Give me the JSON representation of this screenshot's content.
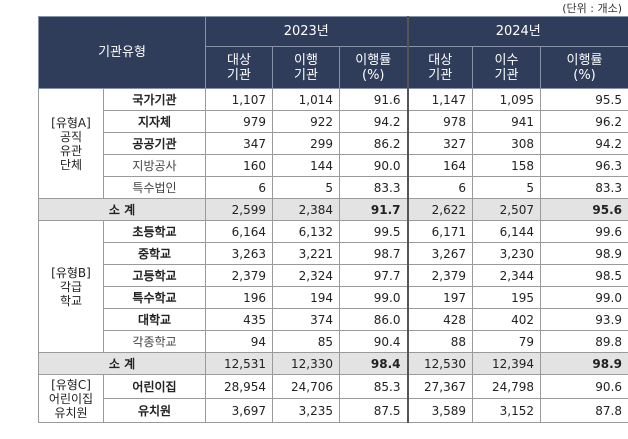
{
  "unit": "(단위 : 개소)",
  "header": {
    "type_label": "기관유형",
    "years": [
      "2023년",
      "2024년"
    ],
    "columns": [
      "대상\n기관",
      "이행\n기관",
      "이행률\n(%)",
      "대상\n기관",
      "이수\n기관",
      "이행률\n(%)"
    ]
  },
  "groups": [
    {
      "label": "[유형A]\n공직\n유관\n단체",
      "rows": [
        {
          "name": "국가기관",
          "bold": true,
          "values": [
            "1,107",
            "1,014",
            "91.6",
            "1,147",
            "1,095",
            "95.5"
          ]
        },
        {
          "name": "지자체",
          "bold": true,
          "values": [
            "979",
            "922",
            "94.2",
            "978",
            "941",
            "96.2"
          ]
        },
        {
          "name": "공공기관",
          "bold": true,
          "values": [
            "347",
            "299",
            "86.2",
            "327",
            "308",
            "94.2"
          ]
        },
        {
          "name": "지방공사",
          "bold": false,
          "values": [
            "160",
            "144",
            "90.0",
            "164",
            "158",
            "96.3"
          ]
        },
        {
          "name": "특수법인",
          "bold": false,
          "values": [
            "6",
            "5",
            "83.3",
            "6",
            "5",
            "83.3"
          ]
        }
      ],
      "subtotal": {
        "label": "소 계",
        "values": [
          "2,599",
          "2,384",
          "91.7",
          "2,622",
          "2,507",
          "95.6"
        ]
      }
    },
    {
      "label": "[유형B]\n각급\n학교",
      "rows": [
        {
          "name": "초등학교",
          "bold": true,
          "values": [
            "6,164",
            "6,132",
            "99.5",
            "6,171",
            "6,144",
            "99.6"
          ]
        },
        {
          "name": "중학교",
          "bold": true,
          "values": [
            "3,263",
            "3,221",
            "98.7",
            "3,267",
            "3,230",
            "98.9"
          ]
        },
        {
          "name": "고등학교",
          "bold": true,
          "values": [
            "2,379",
            "2,324",
            "97.7",
            "2,379",
            "2,344",
            "98.5"
          ]
        },
        {
          "name": "특수학교",
          "bold": true,
          "values": [
            "196",
            "194",
            "99.0",
            "197",
            "195",
            "99.0"
          ]
        },
        {
          "name": "대학교",
          "bold": true,
          "values": [
            "435",
            "374",
            "86.0",
            "428",
            "402",
            "93.9"
          ]
        },
        {
          "name": "각종학교",
          "bold": false,
          "values": [
            "94",
            "85",
            "90.4",
            "88",
            "79",
            "89.8"
          ]
        }
      ],
      "subtotal": {
        "label": "소 계",
        "values": [
          "12,531",
          "12,330",
          "98.4",
          "12,530",
          "12,394",
          "98.9"
        ]
      }
    },
    {
      "label": "[유형C]\n어린이집\n유치원",
      "rows": [
        {
          "name": "어린이집",
          "bold": true,
          "values": [
            "28,954",
            "24,706",
            "85.3",
            "27,367",
            "24,798",
            "90.6"
          ]
        },
        {
          "name": "유치원",
          "bold": true,
          "values": [
            "3,697",
            "3,235",
            "87.5",
            "3,589",
            "3,152",
            "87.8"
          ]
        }
      ]
    }
  ]
}
